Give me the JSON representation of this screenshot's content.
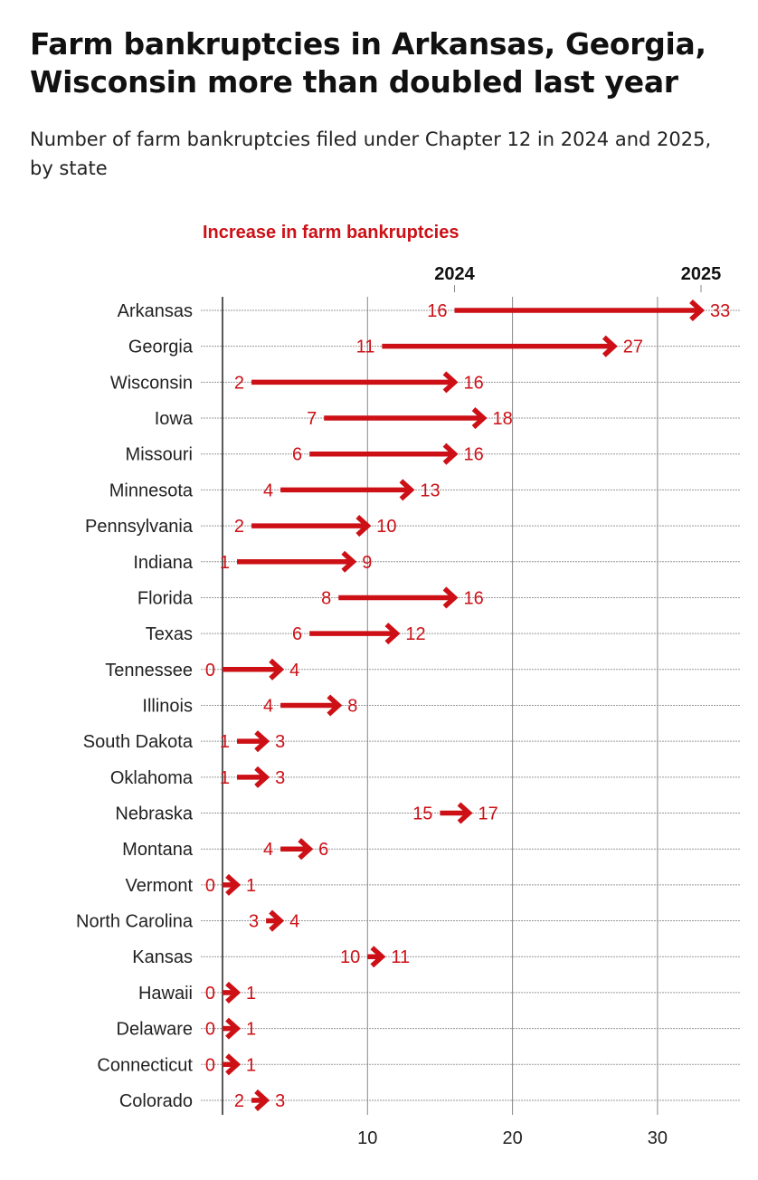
{
  "title": "Farm bankruptcies in Arkansas, Georgia, Wisconsin more than doubled last year",
  "subtitle": "Number of farm bankruptcies filed under Chapter 12 in 2024 and 2025, by state",
  "chart_data": {
    "type": "arrow",
    "legend_label": "Increase in farm bankruptcies",
    "series_labels": [
      "2024",
      "2025"
    ],
    "xlim": [
      0,
      35
    ],
    "xticks": [
      10,
      20,
      30
    ],
    "grid": true,
    "colors": {
      "arrow": "#cc1016",
      "text": "#222222",
      "grid": "#999999"
    },
    "categories": [
      "Arkansas",
      "Georgia",
      "Wisconsin",
      "Iowa",
      "Missouri",
      "Minnesota",
      "Pennsylvania",
      "Indiana",
      "Florida",
      "Texas",
      "Tennessee",
      "Illinois",
      "South Dakota",
      "Oklahoma",
      "Nebraska",
      "Montana",
      "Vermont",
      "North Carolina",
      "Kansas",
      "Hawaii",
      "Delaware",
      "Connecticut",
      "Colorado"
    ],
    "series": [
      {
        "name": "2024",
        "values": [
          16,
          11,
          2,
          7,
          6,
          4,
          2,
          1,
          8,
          6,
          0,
          4,
          1,
          1,
          15,
          4,
          0,
          3,
          10,
          0,
          0,
          0,
          2
        ]
      },
      {
        "name": "2025",
        "values": [
          33,
          27,
          16,
          18,
          16,
          13,
          10,
          9,
          16,
          12,
          4,
          8,
          3,
          3,
          17,
          6,
          1,
          4,
          11,
          1,
          1,
          1,
          3
        ]
      }
    ]
  }
}
